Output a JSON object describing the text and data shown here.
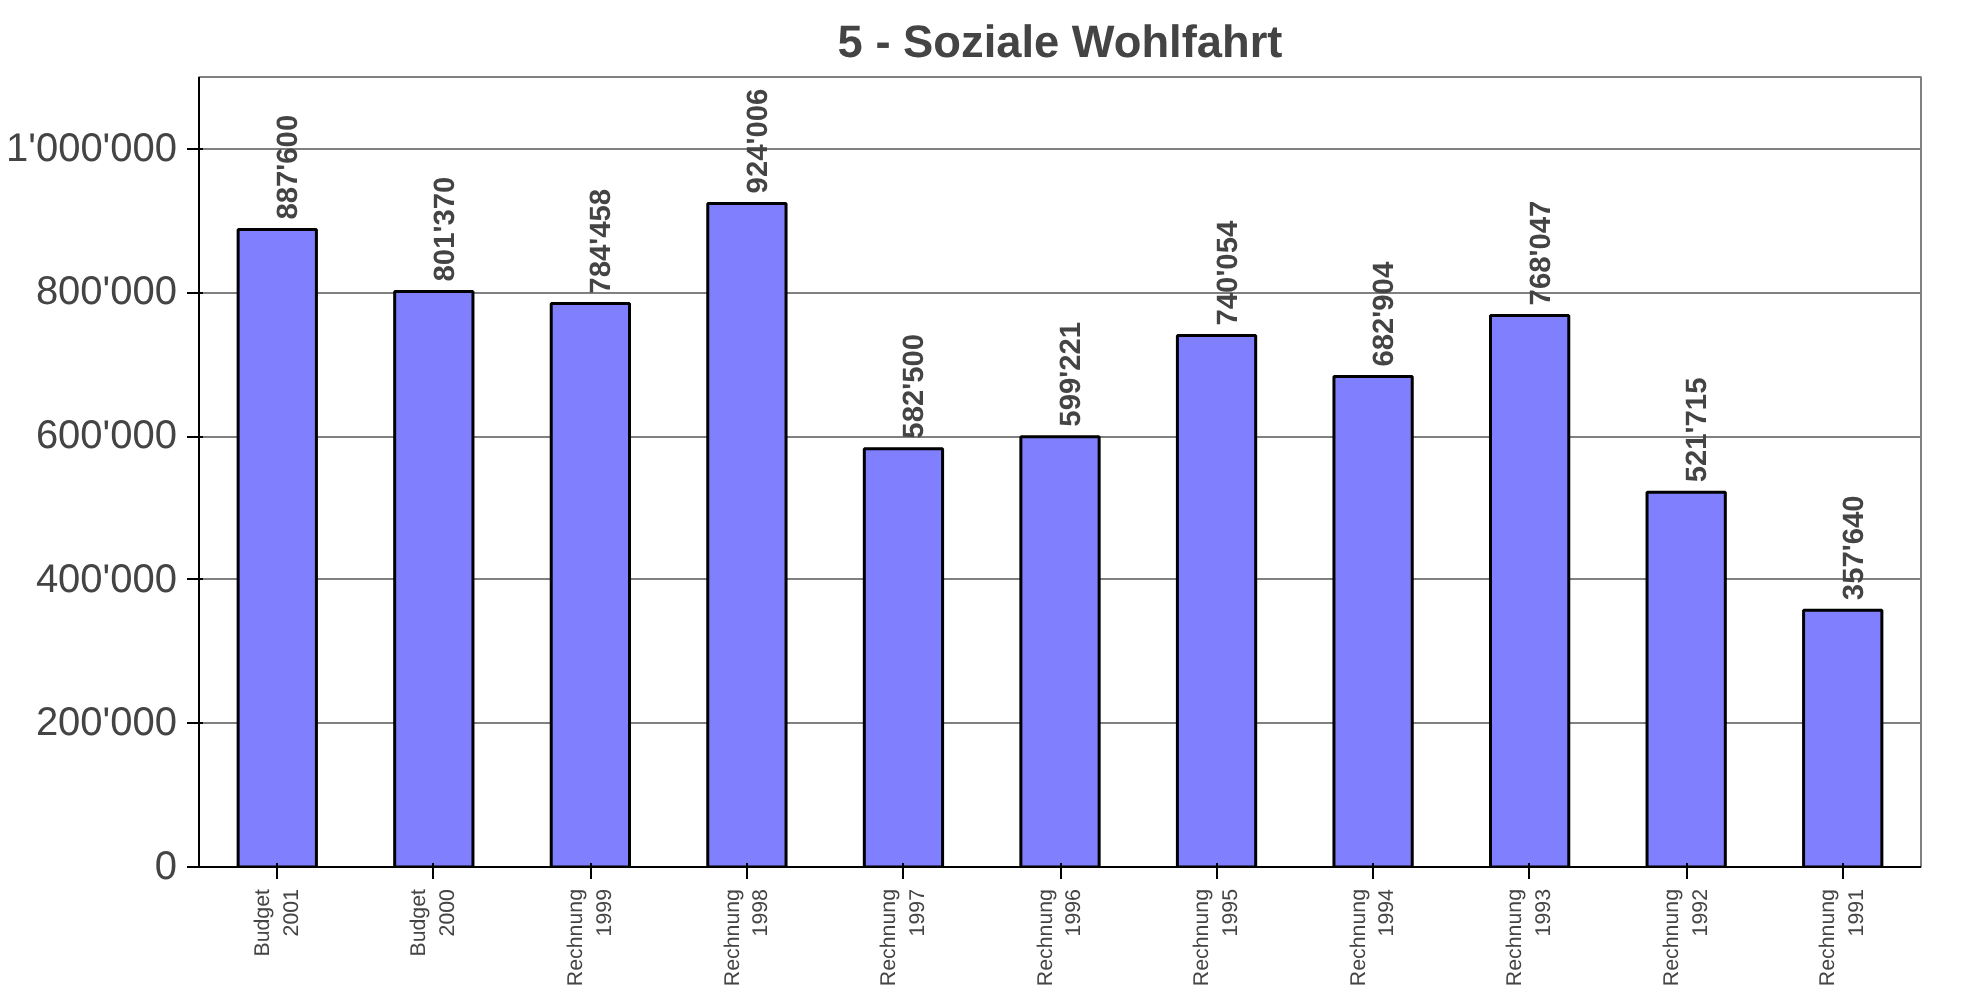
{
  "chart_data": {
    "type": "bar",
    "title": "5 - Soziale Wohlfahrt",
    "categories": [
      "Budget\n2001",
      "Budget\n2000",
      "Rechnung\n1999",
      "Rechnung\n1998",
      "Rechnung\n1997",
      "Rechnung\n1996",
      "Rechnung\n1995",
      "Rechnung\n1994",
      "Rechnung\n1993",
      "Rechnung\n1992",
      "Rechnung\n1991"
    ],
    "values": [
      887600,
      801370,
      784458,
      924006,
      582500,
      599221,
      740054,
      682904,
      768047,
      521715,
      357640
    ],
    "value_labels": [
      "887'600",
      "801'370",
      "784'458",
      "924'006",
      "582'500",
      "599'221",
      "740'054",
      "682'904",
      "768'047",
      "521'715",
      "357'640"
    ],
    "color": "#8080ff",
    "ylim": [
      0,
      1100000
    ],
    "yticks": [
      {
        "value": 0,
        "label": "0"
      },
      {
        "value": 200000,
        "label": "200'000"
      },
      {
        "value": 400000,
        "label": "400'000"
      },
      {
        "value": 600000,
        "label": "600'000"
      },
      {
        "value": 800000,
        "label": "800'000"
      },
      {
        "value": 1000000,
        "label": "1'000'000"
      }
    ],
    "grid": "y"
  }
}
